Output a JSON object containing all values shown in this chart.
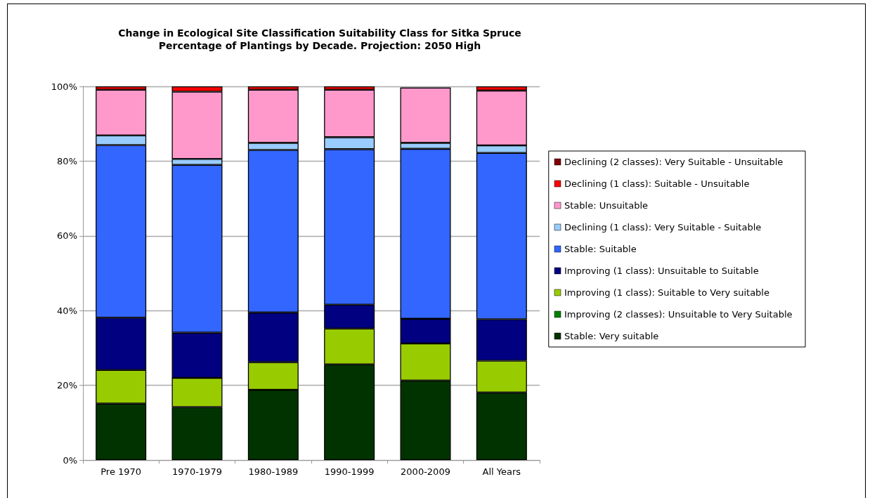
{
  "chart_data": {
    "type": "bar",
    "stacked": true,
    "title": "Change in Ecological Site Classification Suitability Class for Sitka Spruce",
    "subtitle": "Percentage of Plantings by Decade. Projection: 2050 High",
    "categories": [
      "Pre 1970",
      "1970-1979",
      "1980-1989",
      "1990-1999",
      "2000-2009",
      "All Years"
    ],
    "ylim": [
      0,
      100
    ],
    "yticks": [
      {
        "value": 0,
        "label": "0%"
      },
      {
        "value": 20,
        "label": "20%"
      },
      {
        "value": 40,
        "label": "40%"
      },
      {
        "value": 60,
        "label": "60%"
      },
      {
        "value": 80,
        "label": "80%"
      },
      {
        "value": 100,
        "label": "100%"
      }
    ],
    "grid": "y",
    "legend": "right",
    "series": [
      {
        "name": "Stable: Very suitable",
        "color": "#003300",
        "values": [
          15.1,
          14.2,
          18.8,
          25.6,
          21.3,
          18.1
        ]
      },
      {
        "name": "Improving (2 classes): Unsuitable to Very Suitable",
        "color": "#008000",
        "values": [
          0,
          0,
          0,
          0,
          0,
          0
        ]
      },
      {
        "name": "Improving (1 class): Suitable to Very suitable",
        "color": "#99cc00",
        "values": [
          9.0,
          7.8,
          7.4,
          9.6,
          9.9,
          8.5
        ]
      },
      {
        "name": "Improving (1 class): Unsuitable to Suitable",
        "color": "#000080",
        "values": [
          14.0,
          12.1,
          13.3,
          6.4,
          6.6,
          11.1
        ]
      },
      {
        "name": "Stable: Suitable",
        "color": "#3366ff",
        "values": [
          46.2,
          44.9,
          43.5,
          41.6,
          45.5,
          44.5
        ]
      },
      {
        "name": "Declining (1 class): Very Suitable - Suitable",
        "color": "#99ccff",
        "values": [
          2.6,
          1.6,
          1.9,
          3.2,
          1.6,
          2.0
        ]
      },
      {
        "name": "Stable: Unsuitable",
        "color": "#ff99cc",
        "values": [
          12.2,
          18.0,
          14.2,
          12.7,
          14.8,
          14.7
        ]
      },
      {
        "name": "Declining (1 class): Suitable - Unsuitable",
        "color": "#ff0000",
        "values": [
          0.9,
          1.4,
          0.9,
          0.9,
          null,
          1.1
        ]
      },
      {
        "name": "Declining (2 classes): Very Suitable - Unsuitable",
        "color": "#800000",
        "values": [
          0,
          0,
          0,
          0,
          0,
          0
        ]
      }
    ]
  }
}
